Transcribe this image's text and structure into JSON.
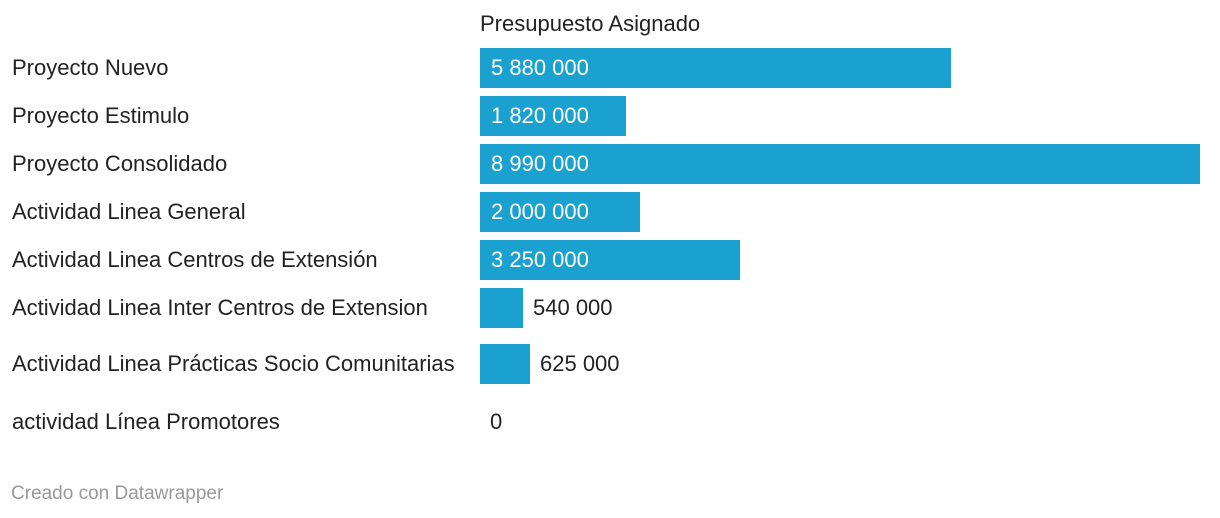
{
  "chart_data": {
    "type": "bar",
    "orientation": "horizontal",
    "title": "",
    "column_header": "Presupuesto Asignado",
    "categories": [
      "Proyecto Nuevo",
      "Proyecto Estimulo",
      "Proyecto Consolidado",
      "Actividad Linea General",
      "Actividad Linea Centros de Extensión",
      "Actividad Linea Inter Centros de Extension",
      "Actividad Linea Prácticas Socio Comunitarias",
      "actividad Línea Promotores"
    ],
    "values": [
      5880000,
      1820000,
      8990000,
      2000000,
      3250000,
      540000,
      625000,
      0
    ],
    "value_labels": [
      "5 880 000",
      "1 820 000",
      "8 990 000",
      "2 000 000",
      "3 250 000",
      "540 000",
      "625 000",
      "0"
    ],
    "xlim": [
      0,
      8990000
    ],
    "grid": false,
    "colors": {
      "bar": "#1aa1d0",
      "label_inside": "#ffffff",
      "label_outside": "#222222"
    }
  },
  "footer": {
    "credit": "Creado con Datawrapper"
  }
}
